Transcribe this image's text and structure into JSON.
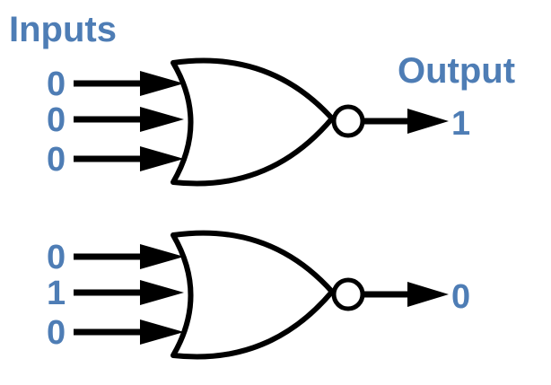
{
  "headings": {
    "inputs": "Inputs",
    "output": "Output"
  },
  "gates": [
    {
      "gate_type": "NOR",
      "inputs": [
        "0",
        "0",
        "0"
      ],
      "output": "1"
    },
    {
      "gate_type": "NOR",
      "inputs": [
        "0",
        "1",
        "0"
      ],
      "output": "0"
    }
  ],
  "colors": {
    "label": "#4e7db5",
    "line": "#000000",
    "background": "#ffffff"
  }
}
